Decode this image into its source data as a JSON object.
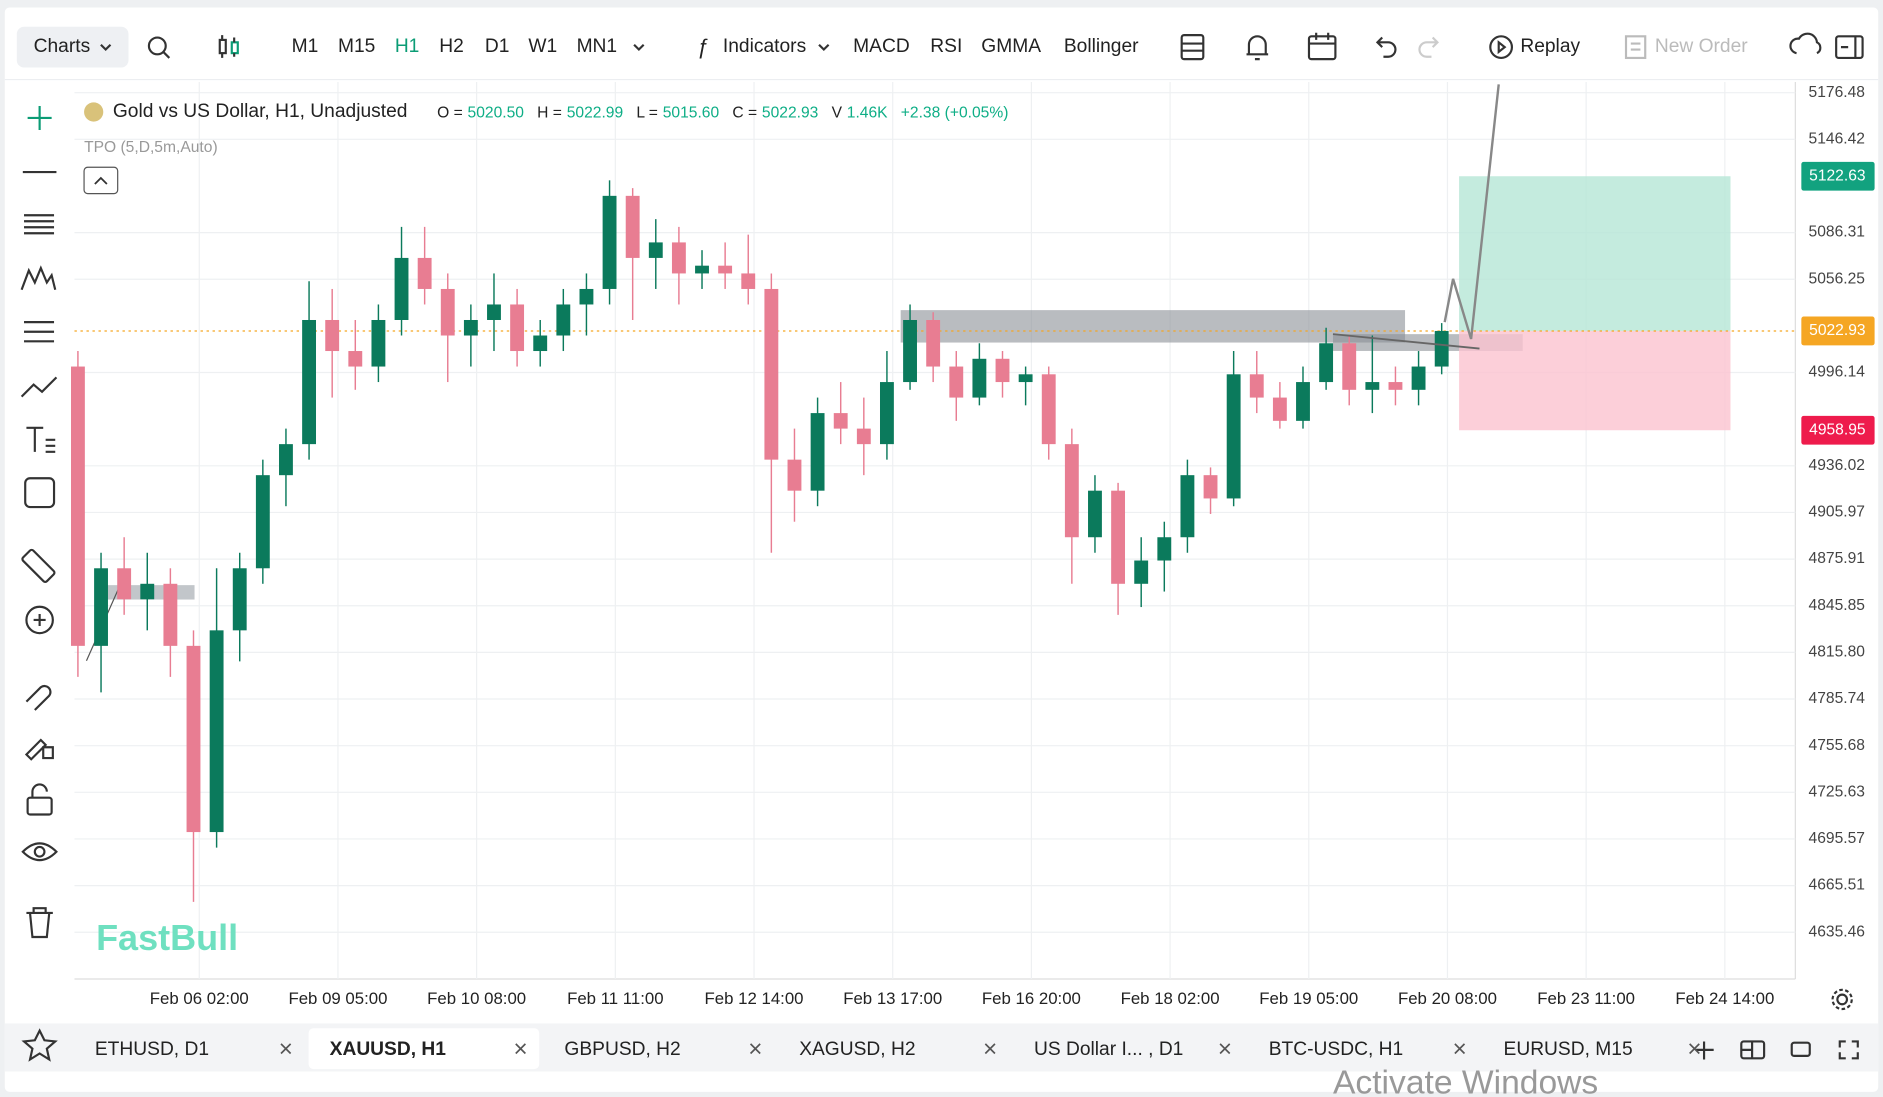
{
  "toolbar": {
    "charts": "Charts",
    "timeframes": [
      "M1",
      "M15",
      "H1",
      "H2",
      "D1",
      "W1",
      "MN1"
    ],
    "active_timeframe": "H1",
    "indicators": "Indicators",
    "indicator_shortcuts": [
      "MACD",
      "RSI",
      "GMMA",
      "Bollinger"
    ],
    "replay": "Replay",
    "new_order": "New Order"
  },
  "chart_data": {
    "type": "candlestick",
    "title": "Gold vs US Dollar, H1, Unadjusted",
    "ohlcv": [
      {
        "label": "O =",
        "value": "5020.50"
      },
      {
        "label": "H =",
        "value": "5022.99"
      },
      {
        "label": "L =",
        "value": "5015.60"
      },
      {
        "label": "C =",
        "value": "5022.93"
      },
      {
        "label": "V",
        "value": "1.46K"
      }
    ],
    "change": "+2.38 (+0.05%)",
    "indicator": "TPO (5,D,5m,Auto)",
    "xlim": [
      2.4,
      300.2
    ],
    "xticks": [
      {
        "value": 24,
        "label": "Feb 06 02:00"
      },
      {
        "value": 48,
        "label": "Feb 09 05:00"
      },
      {
        "value": 72,
        "label": "Feb 10 08:00"
      },
      {
        "value": 96,
        "label": "Feb 11 11:00"
      },
      {
        "value": 120,
        "label": "Feb 12 14:00"
      },
      {
        "value": 144,
        "label": "Feb 13 17:00"
      },
      {
        "value": 168,
        "label": "Feb 16 20:00"
      },
      {
        "value": 192,
        "label": "Feb 18 02:00"
      },
      {
        "value": 216,
        "label": "Feb 19 05:00"
      },
      {
        "value": 240,
        "label": "Feb 20 08:00"
      },
      {
        "value": 264,
        "label": "Feb 23 11:00"
      },
      {
        "value": 288,
        "label": "Feb 24 14:00"
      }
    ],
    "ylim": [
      4605.3,
      5183.4
    ],
    "yticks": [
      5176.48,
      5146.42,
      5086.31,
      5056.25,
      4996.14,
      4936.02,
      4905.97,
      4875.91,
      4845.85,
      {
        "value": 4815.8,
        "label": "4815.80"
      },
      4785.74,
      4755.68,
      4725.63,
      4695.57,
      4665.51,
      4635.46
    ],
    "x": [
      3,
      7,
      11,
      15,
      19,
      23,
      27,
      31,
      35,
      39,
      43,
      47,
      51,
      55,
      59,
      63,
      67,
      71,
      75,
      79,
      83,
      87,
      91,
      95,
      99,
      103,
      107,
      111,
      115,
      119,
      123,
      127,
      131,
      135,
      139,
      143,
      147,
      151,
      155,
      159,
      163,
      167,
      171,
      175,
      179,
      183,
      187,
      191,
      195,
      199,
      203,
      207,
      211,
      215,
      219,
      223,
      227,
      231,
      235,
      239
    ],
    "candles": [
      [
        5000,
        5010,
        4800,
        4820
      ],
      [
        4820,
        4880,
        4790,
        4870
      ],
      [
        4870,
        4890,
        4840,
        4850
      ],
      [
        4850,
        4880,
        4830,
        4860
      ],
      [
        4860,
        4870,
        4800,
        4820
      ],
      [
        4820,
        4830,
        4655,
        4700
      ],
      [
        4700,
        4870,
        4690,
        4830
      ],
      [
        4830,
        4880,
        4810,
        4870
      ],
      [
        4870,
        4940,
        4860,
        4930
      ],
      [
        4930,
        4960,
        4910,
        4950
      ],
      [
        4950,
        5055,
        4940,
        5030
      ],
      [
        5030,
        5050,
        4980,
        5010
      ],
      [
        5010,
        5030,
        4985,
        5000
      ],
      [
        5000,
        5040,
        4990,
        5030
      ],
      [
        5030,
        5090,
        5020,
        5070
      ],
      [
        5070,
        5090,
        5040,
        5050
      ],
      [
        5050,
        5060,
        4990,
        5020
      ],
      [
        5020,
        5040,
        5000,
        5030
      ],
      [
        5030,
        5060,
        5010,
        5040
      ],
      [
        5040,
        5050,
        5000,
        5010
      ],
      [
        5010,
        5030,
        5000,
        5020
      ],
      [
        5020,
        5050,
        5010,
        5040
      ],
      [
        5040,
        5060,
        5020,
        5050
      ],
      [
        5050,
        5120,
        5040,
        5110
      ],
      [
        5110,
        5115,
        5030,
        5070
      ],
      [
        5070,
        5095,
        5050,
        5080
      ],
      [
        5080,
        5090,
        5040,
        5060
      ],
      [
        5060,
        5075,
        5050,
        5065
      ],
      [
        5065,
        5080,
        5050,
        5060
      ],
      [
        5060,
        5085,
        5040,
        5050
      ],
      [
        5050,
        5060,
        4880,
        4940
      ],
      [
        4940,
        4960,
        4900,
        4920
      ],
      [
        4920,
        4980,
        4910,
        4970
      ],
      [
        4970,
        4990,
        4950,
        4960
      ],
      [
        4960,
        4980,
        4930,
        4950
      ],
      [
        4950,
        5010,
        4940,
        4990
      ],
      [
        4990,
        5040,
        4985,
        5030
      ],
      [
        5030,
        5035,
        4990,
        5000
      ],
      [
        5000,
        5010,
        4965,
        4980
      ],
      [
        4980,
        5015,
        4975,
        5005
      ],
      [
        5005,
        5010,
        4980,
        4990
      ],
      [
        4990,
        5000,
        4975,
        4995
      ],
      [
        4995,
        5000,
        4940,
        4950
      ],
      [
        4950,
        4960,
        4860,
        4890
      ],
      [
        4890,
        4930,
        4880,
        4920
      ],
      [
        4920,
        4925,
        4840,
        4860
      ],
      [
        4860,
        4890,
        4845,
        4875
      ],
      [
        4875,
        4900,
        4855,
        4890
      ],
      [
        4890,
        4940,
        4880,
        4930
      ],
      [
        4930,
        4935,
        4905,
        4915
      ],
      [
        4915,
        5010,
        4910,
        4995
      ],
      [
        4995,
        5010,
        4970,
        4980
      ],
      [
        4980,
        4990,
        4960,
        4965
      ],
      [
        4965,
        5000,
        4960,
        4990
      ],
      [
        4990,
        5025,
        4985,
        5015
      ],
      [
        5015,
        5020,
        4975,
        4985
      ],
      [
        4985,
        5020,
        4970,
        4990
      ],
      [
        4990,
        5000,
        4975,
        4985
      ],
      [
        4985,
        5010,
        4975,
        5000
      ],
      [
        5000,
        5028,
        4995,
        5022.93
      ]
    ],
    "up_color": "#0b7a5c",
    "down_color": "#e87d92",
    "grid": true,
    "last_price": 5022.93,
    "last_price_color": "#f5a623",
    "target_price": 5122.63,
    "target_color": "#12a27f",
    "stop_price": 4958.95,
    "stop_color": "#ee1b4c"
  },
  "watermark": "FastBull",
  "tabs": [
    "ETHUSD, D1",
    "XAUUSD, H1",
    "GBPUSD, H2",
    "XAGUSD, H2",
    "US Dollar I... , D1",
    "BTC-USDC, H1",
    "EURUSD, M15"
  ],
  "active_tab": "XAUUSD, H1",
  "os_overlay": "Activate Windows"
}
